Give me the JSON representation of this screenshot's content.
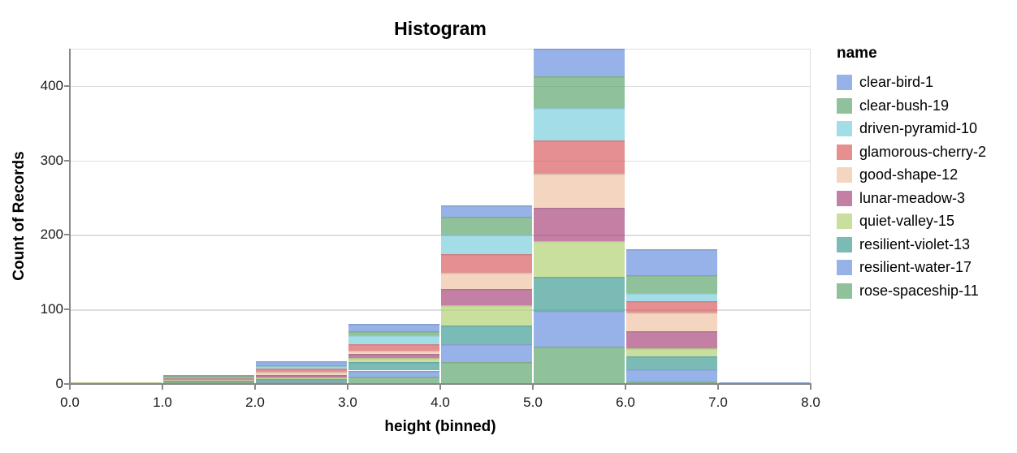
{
  "title": "Histogram",
  "axes": {
    "x": {
      "title": "height (binned)",
      "tick_labels": [
        "0.0",
        "1.0",
        "2.0",
        "3.0",
        "4.0",
        "5.0",
        "6.0",
        "7.0",
        "8.0"
      ]
    },
    "y": {
      "title": "Count of Records",
      "tick_labels": [
        "0",
        "100",
        "200",
        "300",
        "400"
      ],
      "tick_values": [
        0,
        100,
        200,
        300,
        400
      ]
    }
  },
  "legend": {
    "title": "name",
    "items": [
      {
        "label": "clear-bird-1",
        "color": "#6a92de"
      },
      {
        "label": "clear-bush-19",
        "color": "#5fa671"
      },
      {
        "label": "driven-pyramid-10",
        "color": "#7bcede"
      },
      {
        "label": "glamorous-cherry-2",
        "color": "#db5f63"
      },
      {
        "label": "good-shape-12",
        "color": "#eec3a5"
      },
      {
        "label": "lunar-meadow-3",
        "color": "#ab4a7d"
      },
      {
        "label": "quiet-valley-15",
        "color": "#b2d173"
      },
      {
        "label": "resilient-violet-13",
        "color": "#419f95"
      },
      {
        "label": "resilient-water-17",
        "color": "#6a92de"
      },
      {
        "label": "rose-spaceship-11",
        "color": "#5fa671"
      }
    ]
  },
  "chart_data": {
    "type": "bar",
    "subtype": "stacked-histogram",
    "title": "Histogram",
    "xlabel": "height (binned)",
    "ylabel": "Count of Records",
    "bin_edges": [
      0,
      1,
      2,
      3,
      4,
      5,
      6,
      7,
      8
    ],
    "bin_labels": [
      "0-1",
      "1-2",
      "2-3",
      "3-4",
      "4-5",
      "5-6",
      "6-7",
      "7-8"
    ],
    "ylim": [
      0,
      450
    ],
    "grid": true,
    "legend_position": "right",
    "mark_opacity": 0.7,
    "bin_totals": [
      2,
      12,
      30,
      81,
      240,
      450,
      181,
      2
    ],
    "series": [
      {
        "name": "clear-bird-1",
        "color": "#6a92de",
        "values": [
          0,
          1,
          5,
          10,
          16,
          37,
          35,
          1
        ]
      },
      {
        "name": "clear-bush-19",
        "color": "#5fa671",
        "values": [
          0,
          2,
          1,
          6,
          23,
          42,
          24,
          0
        ]
      },
      {
        "name": "driven-pyramid-10",
        "color": "#7bcede",
        "values": [
          0,
          1,
          3,
          12,
          27,
          44,
          11,
          0
        ]
      },
      {
        "name": "glamorous-cherry-2",
        "color": "#db5f63",
        "values": [
          0,
          2,
          5,
          8,
          25,
          45,
          15,
          0
        ]
      },
      {
        "name": "good-shape-12",
        "color": "#eec3a5",
        "values": [
          0,
          1,
          4,
          5,
          21,
          46,
          25,
          0
        ]
      },
      {
        "name": "lunar-meadow-3",
        "color": "#ab4a7d",
        "values": [
          0,
          0,
          3,
          5,
          22,
          44,
          23,
          1
        ]
      },
      {
        "name": "quiet-valley-15",
        "color": "#b2d173",
        "values": [
          2,
          1,
          2,
          6,
          28,
          48,
          11,
          0
        ]
      },
      {
        "name": "resilient-violet-13",
        "color": "#419f95",
        "values": [
          0,
          1,
          3,
          11,
          25,
          46,
          17,
          0
        ]
      },
      {
        "name": "resilient-water-17",
        "color": "#6a92de",
        "values": [
          0,
          0,
          2,
          8,
          24,
          48,
          17,
          0
        ]
      },
      {
        "name": "rose-spaceship-11",
        "color": "#5fa671",
        "values": [
          0,
          3,
          2,
          10,
          29,
          50,
          3,
          0
        ]
      }
    ]
  },
  "style_colors": {
    "gridline": "#dddddd",
    "axis_line": "#888888",
    "text": "#000000",
    "background": "#ffffff"
  }
}
